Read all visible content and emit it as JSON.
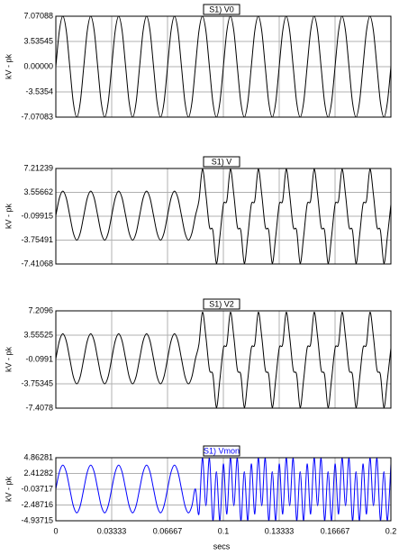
{
  "chart_data": {
    "type": "line",
    "x": [
      0,
      0.00208,
      0.00417,
      0.00625,
      0.00833,
      0.01042,
      0.0125,
      0.01458,
      0.01667,
      0.01875,
      0.02083,
      0.02292,
      0.025,
      0.02708,
      0.02917,
      0.03125,
      0.03333,
      0.03542,
      0.0375,
      0.03958,
      0.04167,
      0.04375,
      0.04583,
      0.04792,
      0.05,
      0.05208,
      0.05417,
      0.05625,
      0.05833,
      0.06042,
      0.0625,
      0.06458,
      0.06667,
      0.06875,
      0.07083,
      0.07292,
      0.075,
      0.07708,
      0.07917,
      0.08125,
      0.08333,
      0.08542,
      0.0875,
      0.08958,
      0.09167,
      0.09375,
      0.09583,
      0.09792,
      0.1,
      0.10208,
      0.10417,
      0.10625,
      0.10833,
      0.11042,
      0.1125,
      0.11458,
      0.11667,
      0.11875,
      0.12083,
      0.12292,
      0.125,
      0.12708,
      0.12917,
      0.13125,
      0.13333,
      0.13542,
      0.1375,
      0.13958,
      0.14167,
      0.14375,
      0.14583,
      0.14792,
      0.15,
      0.15208,
      0.15417,
      0.15625,
      0.15833,
      0.16042,
      0.1625,
      0.16458,
      0.16667,
      0.16875,
      0.17083,
      0.17292,
      0.175,
      0.17708,
      0.17917,
      0.18125,
      0.18333,
      0.18542,
      0.1875,
      0.18958,
      0.19167,
      0.19375,
      0.19583,
      0.19792,
      0.2
    ],
    "xlim": [
      0,
      0.2
    ],
    "xticks": [
      0,
      0.03333,
      0.06667,
      0.1,
      0.13333,
      0.16667,
      0.2
    ],
    "xlabel": "secs",
    "grid": true,
    "panels": [
      {
        "name": "S1) V0",
        "ylabel": "kV - pk",
        "color": "#000000",
        "title_color": "#000000",
        "ylim": [
          -7.07083,
          7.07088
        ],
        "yticks": [
          7.07088,
          3.53545,
          {
            "value": 0,
            "label": "0.00000"
          },
          -3.5354,
          -7.07083
        ],
        "values": [
          0,
          5,
          7.07,
          5,
          0,
          -5,
          -7.07,
          -5,
          0,
          5,
          7.07,
          5,
          0,
          -5,
          -7.07,
          -5,
          0,
          5,
          7.07,
          5,
          0,
          -5,
          -7.07,
          -5,
          0,
          5,
          7.07,
          5,
          0,
          -5,
          -7.07,
          -5,
          0,
          5,
          7.07,
          5,
          0,
          -5,
          -7.07,
          -5,
          0,
          5,
          7.07,
          5,
          0,
          -5,
          -7.07,
          -5,
          0,
          5,
          7.07,
          5,
          0,
          -5,
          -7.07,
          -5,
          0,
          5,
          7.07,
          5,
          0,
          -5,
          -7.07,
          -5,
          0,
          5,
          7.07,
          5,
          0,
          -5,
          -7.07,
          -5,
          0,
          5,
          7.07,
          5,
          0,
          -5,
          -7.07,
          -5,
          0,
          5,
          7.07,
          5,
          0,
          -5,
          -7.07,
          -5,
          0,
          5,
          7.07,
          5,
          0,
          -5,
          -7.07,
          -5,
          0
        ]
      },
      {
        "name": "S1) V",
        "ylabel": "kV - pk",
        "color": "#000000",
        "title_color": "#000000",
        "ylim": [
          -7.41068,
          7.21239
        ],
        "yticks": [
          7.21239,
          3.55662,
          -0.09915,
          -3.75491,
          -7.41068
        ],
        "values": [
          0,
          2.65,
          3.75,
          2.65,
          0,
          -2.65,
          -3.75,
          -2.65,
          0,
          2.65,
          3.75,
          2.65,
          0,
          -2.65,
          -3.75,
          -2.65,
          0,
          2.65,
          3.75,
          2.65,
          0,
          -2.65,
          -3.75,
          -2.65,
          0,
          2.65,
          3.75,
          2.65,
          0,
          -2.65,
          -3.75,
          -2.65,
          0,
          2.65,
          3.75,
          2.65,
          0,
          -2.65,
          -3.75,
          -2.65,
          0,
          2.3,
          7.1,
          3.2,
          -1.7,
          -2.3,
          -7.3,
          -3.2,
          1.7,
          2.3,
          7.1,
          3.2,
          -1.7,
          -2.3,
          -7.3,
          -3.2,
          1.7,
          2.3,
          7.1,
          3.2,
          -1.7,
          -2.3,
          -7.3,
          -3.2,
          1.7,
          2.3,
          7.1,
          3.2,
          -1.7,
          -2.3,
          -7.3,
          -3.2,
          1.7,
          2.3,
          7.1,
          3.2,
          -1.7,
          -2.3,
          -7.3,
          -3.2,
          1.7,
          2.3,
          7.1,
          3.2,
          -1.7,
          -2.3,
          -7.3,
          -3.2,
          1.7,
          2.3,
          7.1,
          3.2,
          -1.7,
          -2.3,
          -7.3,
          -3.2,
          1.7
        ]
      },
      {
        "name": "S1) V2",
        "ylabel": "kV - pk",
        "color": "#000000",
        "title_color": "#000000",
        "ylim": [
          -7.4078,
          7.2096
        ],
        "yticks": [
          7.2096,
          3.55525,
          -0.0991,
          -3.75345,
          -7.4078
        ],
        "values": [
          0,
          2.65,
          3.75,
          2.65,
          0,
          -2.65,
          -3.75,
          -2.65,
          0,
          2.65,
          3.75,
          2.65,
          0,
          -2.65,
          -3.75,
          -2.65,
          0,
          2.65,
          3.75,
          2.65,
          0,
          -2.65,
          -3.75,
          -2.65,
          0,
          2.65,
          3.75,
          2.65,
          0,
          -2.65,
          -3.75,
          -2.65,
          0,
          2.65,
          3.75,
          2.65,
          0,
          -2.65,
          -3.75,
          -2.65,
          0,
          2.2,
          7.0,
          3.3,
          -1.6,
          -2.4,
          -7.3,
          -3.1,
          1.6,
          2.2,
          7.0,
          3.3,
          -1.6,
          -2.4,
          -7.3,
          -3.1,
          1.6,
          2.2,
          7.0,
          3.3,
          -1.6,
          -2.4,
          -7.3,
          -3.1,
          1.6,
          2.2,
          7.0,
          3.3,
          -1.6,
          -2.4,
          -7.3,
          -3.1,
          1.6,
          2.2,
          7.0,
          3.3,
          -1.6,
          -2.4,
          -7.3,
          -3.1,
          1.6,
          2.2,
          7.0,
          3.3,
          -1.6,
          -2.4,
          -7.3,
          -3.1,
          1.6,
          2.2,
          7.0,
          3.3,
          -1.6,
          -2.4,
          -7.3,
          -3.1,
          1.6
        ]
      },
      {
        "name": "S1) Vmon",
        "ylabel": "kV - pk",
        "color": "#0000ff",
        "title_color": "#0000ff",
        "ylim": [
          -4.93715,
          4.86281
        ],
        "yticks": [
          4.86281,
          2.41282,
          -0.03717,
          -2.48716,
          -4.93715
        ],
        "values": [
          0,
          2.6,
          3.7,
          2.6,
          0,
          -2.6,
          -3.7,
          -2.6,
          0,
          2.6,
          3.7,
          2.6,
          0,
          -2.6,
          -3.7,
          -2.6,
          0,
          2.6,
          3.7,
          2.6,
          0,
          -2.6,
          -3.7,
          -2.6,
          0,
          2.6,
          3.7,
          2.6,
          0,
          -2.6,
          -3.7,
          -2.6,
          0,
          2.6,
          3.7,
          2.6,
          0,
          -2.6,
          -3.7,
          -2.6,
          0,
          -3.9,
          4.85,
          -2.6,
          4.8,
          -4.9,
          2.7,
          -4.9,
          3.9,
          -3.9,
          4.85,
          -2.6,
          4.8,
          -4.9,
          2.7,
          -4.9,
          3.9,
          -3.9,
          4.85,
          -2.6,
          4.8,
          -4.9,
          2.7,
          -4.9,
          3.9,
          -3.9,
          4.85,
          -2.6,
          4.8,
          -4.9,
          2.7,
          -4.9,
          3.9,
          -3.9,
          4.85,
          -2.6,
          4.8,
          -4.9,
          2.7,
          -4.9,
          3.9,
          -3.9,
          4.85,
          -2.6,
          4.8,
          -4.9,
          2.7,
          -4.9,
          3.9,
          -3.9,
          4.85,
          -2.6,
          4.8,
          -4.9,
          2.7,
          -4.9,
          3.9
        ]
      }
    ]
  }
}
